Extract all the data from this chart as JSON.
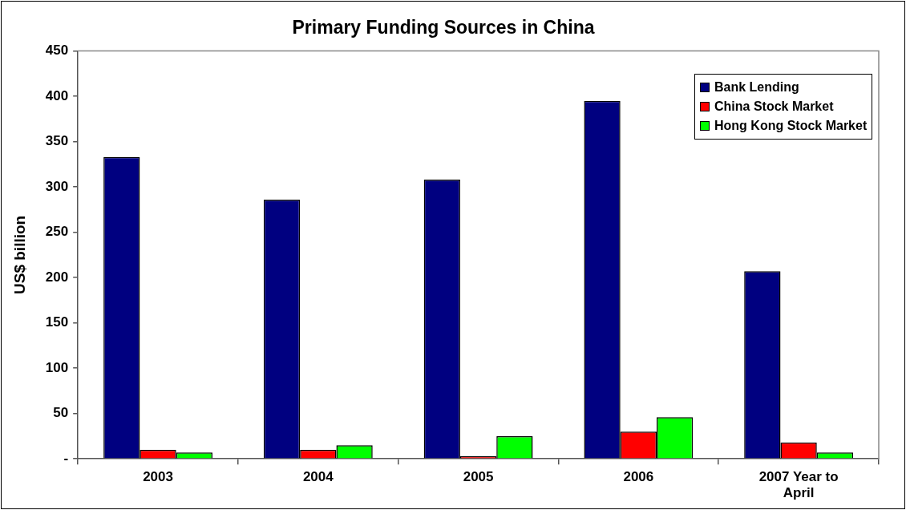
{
  "chart_data": {
    "type": "bar",
    "title": "Primary Funding Sources in China",
    "ylabel": "US$ billion",
    "categories": [
      "2003",
      "2004",
      "2005",
      "2006",
      "2007 Year to April"
    ],
    "series": [
      {
        "name": "Bank Lending",
        "color": "#000080",
        "values": [
          333,
          286,
          308,
          395,
          207
        ]
      },
      {
        "name": "China Stock Market",
        "color": "#ff0000",
        "values": [
          10,
          10,
          3,
          30,
          18
        ]
      },
      {
        "name": "Hong Kong Stock Market",
        "color": "#00ff00",
        "values": [
          7,
          15,
          25,
          46,
          7
        ]
      }
    ],
    "ylim": [
      0,
      450
    ],
    "yticks": [
      {
        "value": 0,
        "label": "-"
      },
      50,
      100,
      150,
      200,
      250,
      300,
      350,
      400,
      450
    ],
    "legend": "top right"
  }
}
